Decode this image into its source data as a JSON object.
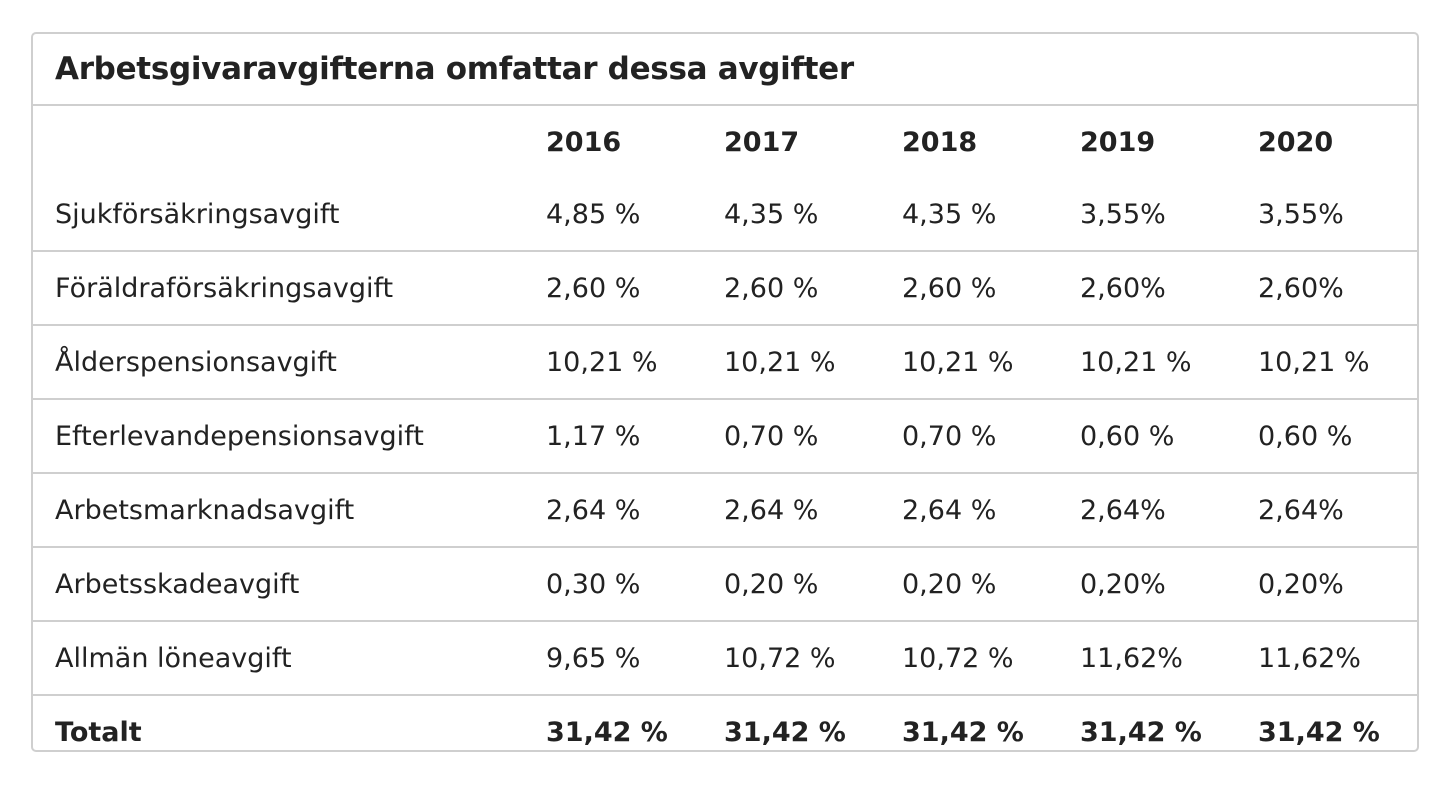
{
  "table": {
    "caption": "Arbetsgivaravgifterna omfattar dessa avgifter",
    "header": {
      "label": "",
      "years": [
        "2016",
        "2017",
        "2018",
        "2019",
        "2020"
      ]
    },
    "rows": [
      {
        "label": "Sjukförsäkringsavgift",
        "values": [
          "4,85 %",
          "4,35 %",
          "4,35 %",
          "3,55%",
          "3,55%"
        ]
      },
      {
        "label": "Föräldraförsäkringsavgift",
        "values": [
          "2,60 %",
          "2,60 %",
          "2,60 %",
          "2,60%",
          "2,60%"
        ]
      },
      {
        "label": "Ålderspensionsavgift",
        "values": [
          "10,21 %",
          "10,21 %",
          "10,21 %",
          "10,21 %",
          "10,21 %"
        ]
      },
      {
        "label": "Efterlevandepensionsavgift",
        "values": [
          "1,17 %",
          "0,70 %",
          "0,70 %",
          "0,60 %",
          "0,60 %"
        ]
      },
      {
        "label": "Arbetsmarknadsavgift",
        "values": [
          "2,64 %",
          "2,64 %",
          "2,64 %",
          "2,64%",
          "2,64%"
        ]
      },
      {
        "label": "Arbetsskadeavgift",
        "values": [
          "0,30 %",
          "0,20 %",
          "0,20 %",
          "0,20%",
          "0,20%"
        ]
      },
      {
        "label": "Allmän löneavgift",
        "values": [
          "9,65 %",
          "10,72 %",
          "10,72 %",
          "11,62%",
          "11,62%"
        ]
      }
    ],
    "total": {
      "label": "Totalt",
      "values": [
        "31,42 %",
        "31,42 %",
        "31,42 %",
        "31,42 %",
        "31,42 %"
      ]
    }
  }
}
